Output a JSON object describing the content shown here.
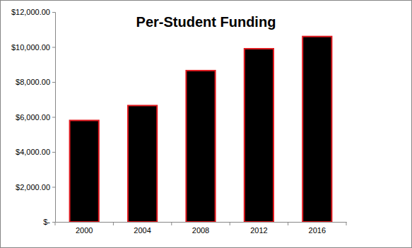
{
  "chart_data": {
    "type": "bar",
    "title": "Per-Student Funding",
    "categories": [
      "2000",
      "2004",
      "2008",
      "2012",
      "2016"
    ],
    "values": [
      5800,
      6650,
      8650,
      9900,
      10600
    ],
    "color": "#000000",
    "ylim": [
      0,
      12000
    ],
    "yticks": [
      {
        "value": 0,
        "label": "$-"
      },
      {
        "value": 2000,
        "label": "$2,000.00"
      },
      {
        "value": 4000,
        "label": "$4,000.00"
      },
      {
        "value": 6000,
        "label": "$6,000.00"
      },
      {
        "value": 8000,
        "label": "$8,000.00"
      },
      {
        "value": 10000,
        "label": "$10,000.00"
      },
      {
        "value": 12000,
        "label": "$12,000.00"
      }
    ],
    "grid": false
  }
}
